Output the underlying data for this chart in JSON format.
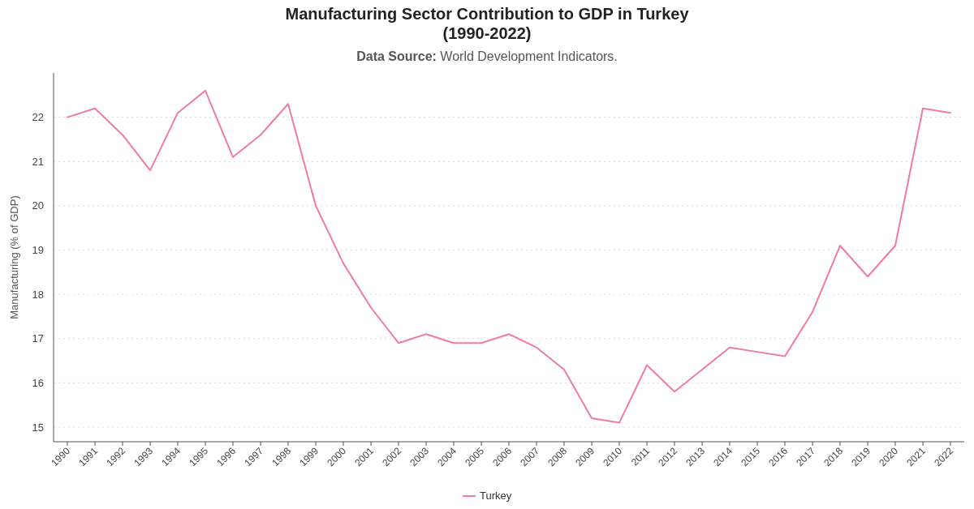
{
  "chart_data": {
    "type": "line",
    "title": "Manufacturing Sector Contribution to GDP in Turkey\n(1990-2022)",
    "subtitle": "Data Source: World Development Indicators.",
    "ylabel": "Manufacturing (% of GDP)",
    "categories": [
      "1990",
      "1991",
      "1992",
      "1993",
      "1994",
      "1995",
      "1996",
      "1997",
      "1998",
      "1999",
      "2000",
      "2001",
      "2002",
      "2003",
      "2004",
      "2005",
      "2006",
      "2007",
      "2008",
      "2009",
      "2010",
      "2011",
      "2012",
      "2013",
      "2014",
      "2015",
      "2016",
      "2017",
      "2018",
      "2019",
      "2020",
      "2021",
      "2022"
    ],
    "series": [
      {
        "name": "Turkey",
        "color": "#f07ba5",
        "values": [
          22.0,
          22.2,
          21.6,
          20.8,
          22.1,
          22.6,
          21.1,
          21.6,
          22.3,
          20.0,
          18.7,
          17.7,
          16.9,
          17.1,
          16.9,
          16.9,
          17.1,
          16.8,
          16.3,
          15.2,
          15.1,
          16.4,
          15.8,
          16.3,
          16.8,
          16.7,
          16.6,
          17.6,
          19.1,
          18.4,
          19.1,
          22.2,
          22.1
        ]
      }
    ],
    "ylim": [
      14.67,
      23
    ],
    "yticks": [
      15,
      16,
      17,
      18,
      19,
      20,
      21,
      22
    ],
    "grid": "y",
    "legend": "bottom",
    "marker": "none",
    "line_style": "solid"
  }
}
